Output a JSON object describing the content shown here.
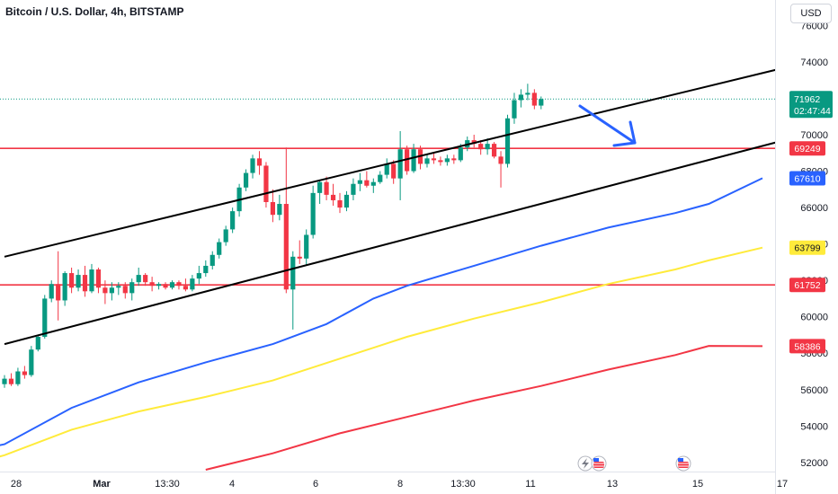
{
  "header": {
    "title": "Bitcoin / U.S. Dollar, 4h, BITSTAMP",
    "currency_label": "USD"
  },
  "chart_data": {
    "type": "candlestick",
    "title": "Bitcoin / U.S. Dollar, 4h, BITSTAMP",
    "y_ticks": [
      52000,
      54000,
      56000,
      58000,
      60000,
      62000,
      64000,
      66000,
      68000,
      70000,
      72000,
      74000,
      76000
    ],
    "ylim": [
      51500,
      77400
    ],
    "x_ticks": [
      "28",
      "Mar",
      "13:30",
      "4",
      "6",
      "8",
      "13:30",
      "11",
      "13",
      "15",
      "17"
    ],
    "current_price": {
      "value": "71962",
      "countdown": "02:47:44"
    },
    "price_tags": [
      {
        "label": "69249",
        "value": 69249,
        "color": "#f23645",
        "text_color": "#ffffff"
      },
      {
        "label": "67610",
        "value": 67610,
        "color": "#2962ff",
        "text_color": "#ffffff"
      },
      {
        "label": "63799",
        "value": 63799,
        "color": "#ffeb3b",
        "text_color": "#131722"
      },
      {
        "label": "61752",
        "value": 61752,
        "color": "#f23645",
        "text_color": "#ffffff"
      },
      {
        "label": "58386",
        "value": 58386,
        "color": "#f23645",
        "text_color": "#ffffff"
      }
    ],
    "horizontal_lines": [
      {
        "value": 69249,
        "color": "#f23645"
      },
      {
        "value": 61752,
        "color": "#f23645"
      }
    ],
    "channel_lines": [
      {
        "name": "upper",
        "from": [
          0,
          63300
        ],
        "to": [
          121,
          74100
        ],
        "color": "#000000"
      },
      {
        "name": "lower",
        "from": [
          0,
          58500
        ],
        "to": [
          150,
          72950
        ],
        "color": "#000000"
      }
    ],
    "moving_averages": [
      {
        "color": "#2962ff",
        "points": [
          [
            -8,
            52400
          ],
          [
            0,
            53000
          ],
          [
            10,
            55000
          ],
          [
            20,
            56400
          ],
          [
            30,
            57500
          ],
          [
            40,
            58500
          ],
          [
            48,
            59600
          ],
          [
            55,
            61000
          ],
          [
            60,
            61700
          ],
          [
            70,
            62800
          ],
          [
            80,
            63900
          ],
          [
            90,
            64900
          ],
          [
            100,
            65700
          ],
          [
            105,
            66200
          ],
          [
            113,
            67610
          ]
        ]
      },
      {
        "color": "#ffeb3b",
        "points": [
          [
            -8,
            51600
          ],
          [
            0,
            52400
          ],
          [
            10,
            53800
          ],
          [
            20,
            54800
          ],
          [
            30,
            55600
          ],
          [
            40,
            56500
          ],
          [
            50,
            57700
          ],
          [
            55,
            58300
          ],
          [
            60,
            58900
          ],
          [
            70,
            59900
          ],
          [
            80,
            60800
          ],
          [
            90,
            61800
          ],
          [
            100,
            62600
          ],
          [
            105,
            63100
          ],
          [
            113,
            63799
          ]
        ]
      },
      {
        "color": "#f23645",
        "points": [
          [
            30,
            51600
          ],
          [
            40,
            52500
          ],
          [
            50,
            53600
          ],
          [
            60,
            54500
          ],
          [
            70,
            55400
          ],
          [
            80,
            56200
          ],
          [
            90,
            57100
          ],
          [
            100,
            57900
          ],
          [
            105,
            58400
          ],
          [
            113,
            58386
          ]
        ]
      }
    ],
    "candles": [
      [
        56300,
        56800,
        56100,
        56600
      ],
      [
        56600,
        56900,
        56200,
        56300
      ],
      [
        56300,
        57200,
        56200,
        57000
      ],
      [
        57000,
        57300,
        56600,
        56800
      ],
      [
        56800,
        58400,
        56700,
        58200
      ],
      [
        58200,
        59000,
        58100,
        58900
      ],
      [
        58900,
        61200,
        58800,
        61000
      ],
      [
        61000,
        62000,
        60800,
        61800
      ],
      [
        61800,
        63600,
        59800,
        60900
      ],
      [
        60900,
        62500,
        60600,
        62400
      ],
      [
        62400,
        62700,
        61300,
        61600
      ],
      [
        61600,
        62600,
        61400,
        62300
      ],
      [
        62300,
        62800,
        61100,
        61400
      ],
      [
        61400,
        62900,
        61300,
        62600
      ],
      [
        62600,
        62700,
        61300,
        61600
      ],
      [
        61600,
        62000,
        60700,
        61300
      ],
      [
        61300,
        61900,
        60900,
        61600
      ],
      [
        61600,
        61900,
        61200,
        61700
      ],
      [
        61700,
        61900,
        61000,
        61300
      ],
      [
        61300,
        62100,
        60900,
        61900
      ],
      [
        61900,
        62700,
        61700,
        62300
      ],
      [
        62300,
        62400,
        61700,
        61900
      ],
      [
        61900,
        62200,
        61400,
        61700
      ],
      [
        61700,
        61900,
        61500,
        61800
      ],
      [
        61800,
        61900,
        61500,
        61600
      ],
      [
        61600,
        62000,
        61500,
        61900
      ],
      [
        61900,
        62000,
        61500,
        61700
      ],
      [
        61700,
        62100,
        61400,
        61500
      ],
      [
        61500,
        62300,
        61400,
        62100
      ],
      [
        62100,
        62800,
        61800,
        62400
      ],
      [
        62400,
        63100,
        62200,
        62800
      ],
      [
        62800,
        63600,
        62600,
        63400
      ],
      [
        63400,
        64300,
        63200,
        64100
      ],
      [
        64100,
        65000,
        63900,
        64800
      ],
      [
        64800,
        66000,
        64600,
        65800
      ],
      [
        65800,
        67300,
        65500,
        67100
      ],
      [
        67100,
        68100,
        66900,
        67900
      ],
      [
        67900,
        68900,
        67600,
        68700
      ],
      [
        68700,
        69100,
        67800,
        68300
      ],
      [
        68300,
        68500,
        66000,
        66300
      ],
      [
        66300,
        67000,
        65200,
        65600
      ],
      [
        65600,
        66700,
        65300,
        66200
      ],
      [
        66200,
        69300,
        61300,
        61500
      ],
      [
        61500,
        63600,
        59300,
        63300
      ],
      [
        63300,
        64200,
        62900,
        63200
      ],
      [
        63200,
        64800,
        62800,
        64500
      ],
      [
        64500,
        67200,
        64300,
        66800
      ],
      [
        66800,
        67500,
        66200,
        67400
      ],
      [
        67400,
        67700,
        66400,
        66700
      ],
      [
        66700,
        67300,
        66100,
        66400
      ],
      [
        66400,
        66800,
        65700,
        66000
      ],
      [
        66000,
        66900,
        65800,
        66700
      ],
      [
        66700,
        67600,
        66400,
        67300
      ],
      [
        67300,
        67900,
        66900,
        67500
      ],
      [
        67500,
        68000,
        67100,
        67200
      ],
      [
        67200,
        67600,
        66800,
        67400
      ],
      [
        67400,
        68000,
        67300,
        67800
      ],
      [
        67800,
        68700,
        67600,
        68400
      ],
      [
        68400,
        68600,
        67300,
        67600
      ],
      [
        67600,
        70200,
        66400,
        69200
      ],
      [
        69200,
        69400,
        67800,
        68000
      ],
      [
        68000,
        69500,
        67900,
        69200
      ],
      [
        69200,
        69400,
        68100,
        68400
      ],
      [
        68400,
        68900,
        68200,
        68700
      ],
      [
        68700,
        69000,
        68400,
        68600
      ],
      [
        68600,
        68800,
        68300,
        68500
      ],
      [
        68500,
        68900,
        68300,
        68700
      ],
      [
        68700,
        68900,
        68400,
        68600
      ],
      [
        68600,
        69500,
        68500,
        69300
      ],
      [
        69300,
        69900,
        69100,
        69700
      ],
      [
        69700,
        70000,
        69300,
        69500
      ],
      [
        69500,
        69700,
        68900,
        69200
      ],
      [
        69200,
        69800,
        68900,
        69500
      ],
      [
        69500,
        69600,
        68700,
        68800
      ],
      [
        68800,
        69100,
        67100,
        68400
      ],
      [
        68400,
        71100,
        68200,
        70900
      ],
      [
        70900,
        72300,
        70600,
        71900
      ],
      [
        71900,
        72500,
        71500,
        72200
      ],
      [
        72200,
        72800,
        71900,
        72300
      ],
      [
        72300,
        72500,
        71400,
        71600
      ],
      [
        71600,
        72100,
        71400,
        71962
      ]
    ]
  }
}
